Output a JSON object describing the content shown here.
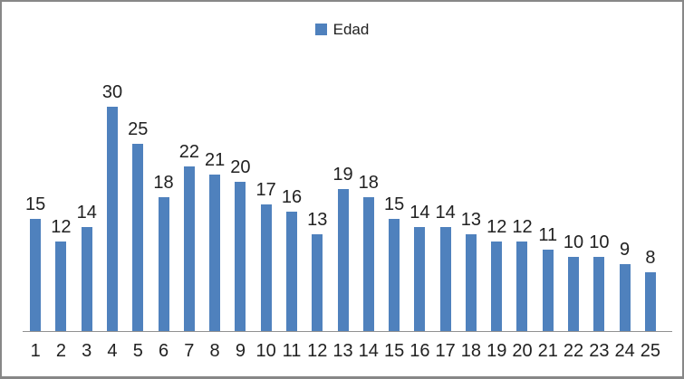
{
  "legend": {
    "label": "Edad",
    "swatch_color": "#4f81bd"
  },
  "chart_data": {
    "type": "bar",
    "title": "",
    "xlabel": "",
    "ylabel": "",
    "categories": [
      "1",
      "2",
      "3",
      "4",
      "5",
      "6",
      "7",
      "8",
      "9",
      "10",
      "11",
      "12",
      "13",
      "14",
      "15",
      "16",
      "17",
      "18",
      "19",
      "20",
      "21",
      "22",
      "23",
      "24",
      "25"
    ],
    "series": [
      {
        "name": "Edad",
        "values": [
          15,
          12,
          14,
          30,
          25,
          18,
          22,
          21,
          20,
          17,
          16,
          13,
          19,
          18,
          15,
          14,
          14,
          13,
          12,
          12,
          11,
          10,
          10,
          9,
          8
        ]
      }
    ],
    "ylim": [
      0,
      30
    ],
    "grid": false,
    "data_labels": true,
    "legend_position": "top-center",
    "bar_color": "#4f81bd",
    "axis_line_color": "#919191"
  }
}
